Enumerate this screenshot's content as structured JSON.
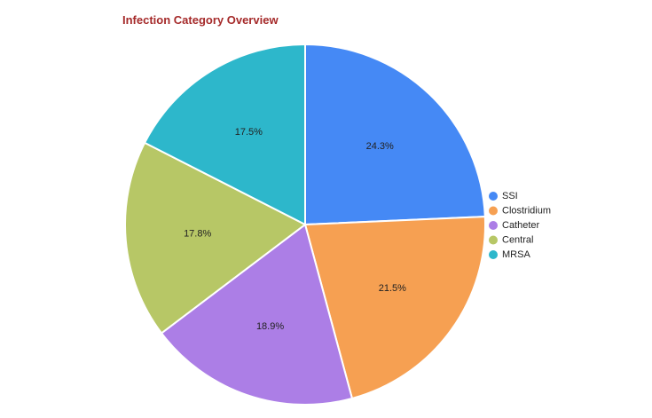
{
  "chart_data": {
    "type": "pie",
    "title": "Infection Category Overview",
    "categories": [
      "SSI",
      "Clostridium",
      "Catheter",
      "Central",
      "MRSA"
    ],
    "values": [
      24.3,
      21.5,
      18.9,
      17.8,
      17.5
    ],
    "labels": [
      "24.3%",
      "21.5%",
      "18.9%",
      "17.8%",
      "17.5%"
    ],
    "colors": [
      "#4589f5",
      "#f6a052",
      "#ac7ee6",
      "#b7c766",
      "#2db7cb"
    ],
    "legend_position": "right",
    "start_angle": "12 o'clock",
    "direction": "clockwise"
  }
}
